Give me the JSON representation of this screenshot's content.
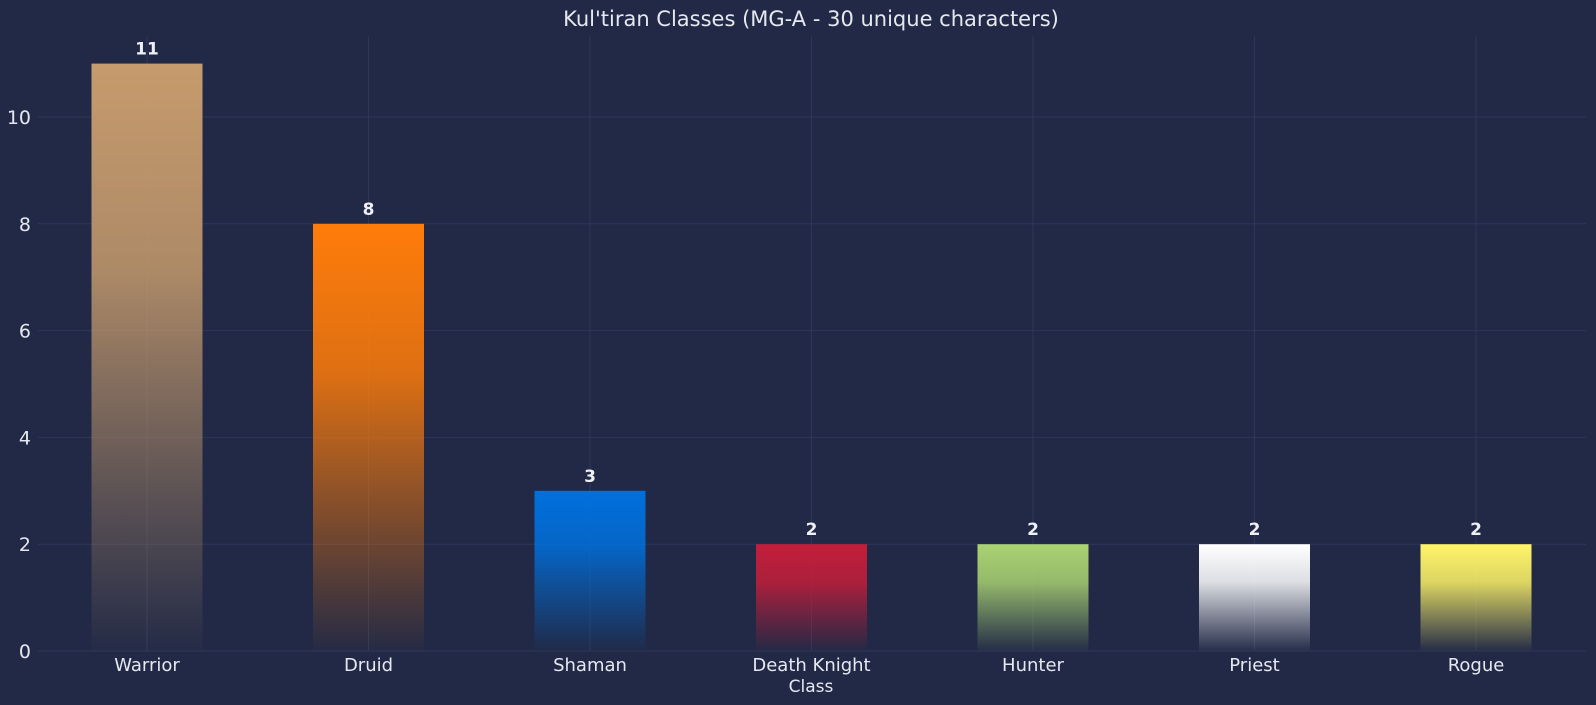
{
  "chart_data": {
    "type": "bar",
    "title": "Kul'tiran Classes (MG-A - 30 unique characters)",
    "xlabel": "Class",
    "ylabel": "",
    "categories": [
      "Warrior",
      "Druid",
      "Shaman",
      "Death Knight",
      "Hunter",
      "Priest",
      "Rogue"
    ],
    "values": [
      11,
      8,
      3,
      2,
      2,
      2,
      2
    ],
    "data_labels": [
      "11",
      "8",
      "3",
      "2",
      "2",
      "2",
      "2"
    ],
    "colors": [
      "#C69B6D",
      "#FF7C0A",
      "#0070DD",
      "#C41E3A",
      "#AAD372",
      "#FFFFFF",
      "#FFF468"
    ],
    "ylim": [
      0,
      11.5
    ],
    "yticks": [
      0,
      2,
      4,
      6,
      8,
      10
    ],
    "grid": true,
    "background": "#212946",
    "bar_style": "vertical gradient fading to background"
  }
}
